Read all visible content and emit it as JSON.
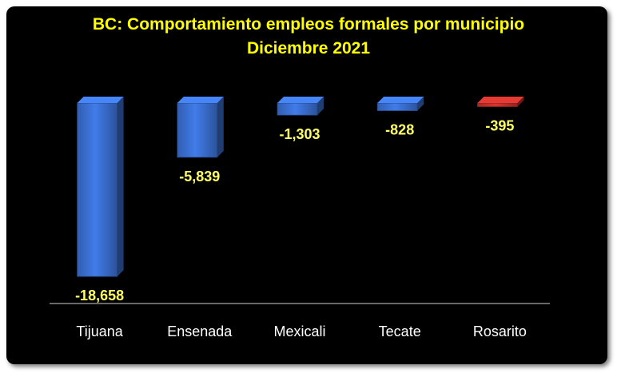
{
  "chart_data": {
    "type": "bar",
    "title": "BC:  Comportamiento empleos formales por municipio",
    "subtitle": "Diciembre 2021",
    "categories": [
      "Tijuana",
      "Ensenada",
      "Mexicali",
      "Tecate",
      "Rosarito"
    ],
    "values": [
      -18658,
      -5839,
      -1303,
      -828,
      -395
    ],
    "value_labels": [
      "-18,658",
      "-5,839",
      "-1,303",
      "-828",
      "-395"
    ],
    "bar_colors": [
      "#3a6fd0",
      "#3a6fd0",
      "#3a6fd0",
      "#3a6fd0",
      "#c0302a"
    ],
    "xlabel": "",
    "ylabel": "",
    "ylim": [
      -19500,
      0
    ],
    "grid": false,
    "legend": "none",
    "background": "#000000",
    "title_color": "#ffff00",
    "label_color": "#ffff66",
    "category_color": "#ffffff"
  }
}
